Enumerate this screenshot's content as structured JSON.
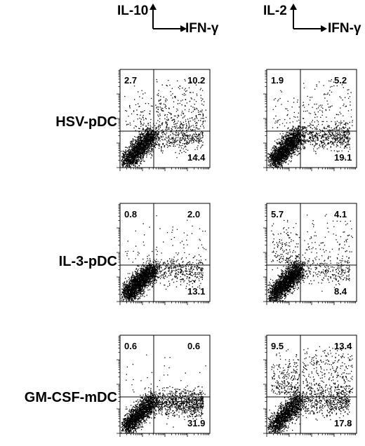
{
  "columns": [
    {
      "y_marker": "IL-10",
      "x_marker": "IFN-γ"
    },
    {
      "y_marker": "IL-2",
      "x_marker": "IFN-γ"
    }
  ],
  "rows": [
    {
      "label": "HSV-pDC"
    },
    {
      "label": "IL-3-pDC"
    },
    {
      "label": "GM-CSF-mDC"
    }
  ],
  "chart_data": [
    {
      "type": "scatter",
      "row": "HSV-pDC",
      "y_marker": "IL-10",
      "x_marker": "IFN-γ",
      "quadrant_percent": {
        "upper_left": 2.7,
        "upper_right": 10.2,
        "lower_right": 14.4
      }
    },
    {
      "type": "scatter",
      "row": "HSV-pDC",
      "y_marker": "IL-2",
      "x_marker": "IFN-γ",
      "quadrant_percent": {
        "upper_left": 1.9,
        "upper_right": 5.2,
        "lower_right": 19.1
      }
    },
    {
      "type": "scatter",
      "row": "IL-3-pDC",
      "y_marker": "IL-10",
      "x_marker": "IFN-γ",
      "quadrant_percent": {
        "upper_left": 0.8,
        "upper_right": 2.0,
        "lower_right": 13.1
      }
    },
    {
      "type": "scatter",
      "row": "IL-3-pDC",
      "y_marker": "IL-2",
      "x_marker": "IFN-γ",
      "quadrant_percent": {
        "upper_left": 5.7,
        "upper_right": 4.1,
        "lower_right": 8.4
      }
    },
    {
      "type": "scatter",
      "row": "GM-CSF-mDC",
      "y_marker": "IL-10",
      "x_marker": "IFN-γ",
      "quadrant_percent": {
        "upper_left": 0.6,
        "upper_right": 0.6,
        "lower_right": 31.9
      }
    },
    {
      "type": "scatter",
      "row": "GM-CSF-mDC",
      "y_marker": "IL-2",
      "x_marker": "IFN-γ",
      "quadrant_percent": {
        "upper_left": 9.5,
        "upper_right": 13.4,
        "lower_right": 17.8
      }
    }
  ]
}
